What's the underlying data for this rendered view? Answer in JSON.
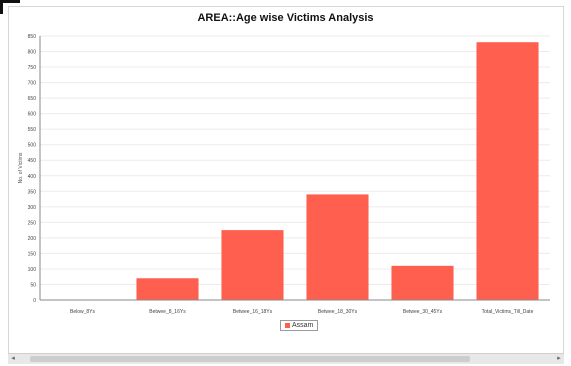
{
  "chart_data": {
    "type": "bar",
    "title": "AREA::Age wise Victims Analysis",
    "ylabel": "No. of Victims",
    "xlabel": "",
    "categories": [
      "Below_8Ys",
      "Betwee_8_16Ys",
      "Betwee_16_18Ys",
      "Betwee_18_30Ys",
      "Betwee_30_45Ys",
      "Total_Victims_Till_Date"
    ],
    "series": [
      {
        "name": "Assam",
        "values": [
          0,
          70,
          225,
          340,
          110,
          830
        ]
      }
    ],
    "ylim": [
      0,
      850
    ],
    "yticks": [
      0,
      50,
      100,
      150,
      200,
      250,
      300,
      350,
      400,
      450,
      500,
      550,
      600,
      650,
      700,
      750,
      800,
      850
    ],
    "grid": true,
    "legend_position": "bottom-center",
    "colors": {
      "bar": "#ff5f4f",
      "grid": "#ececec",
      "axis": "#888888"
    }
  }
}
